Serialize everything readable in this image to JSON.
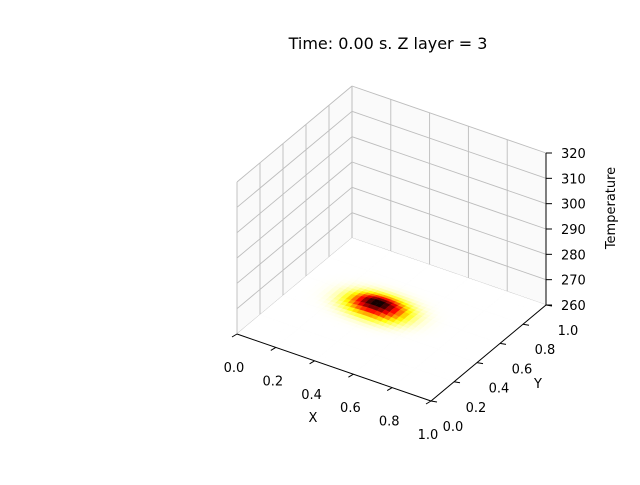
{
  "chart_data": {
    "type": "surface",
    "title": "Time: 0.00 s. Z layer = 3",
    "xlabel": "X",
    "ylabel": "Y",
    "zlabel": "Temperature",
    "xlim": [
      0.0,
      1.0
    ],
    "ylim": [
      0.0,
      1.0
    ],
    "zlim": [
      260,
      320
    ],
    "x_ticks": [
      "0.0",
      "0.2",
      "0.4",
      "0.6",
      "0.8",
      "1.0"
    ],
    "y_ticks": [
      "0.0",
      "0.2",
      "0.4",
      "0.6",
      "0.8",
      "1.0"
    ],
    "z_ticks": [
      "260",
      "270",
      "280",
      "290",
      "300",
      "310",
      "320"
    ],
    "grid": true,
    "colormap": "hot",
    "surface": {
      "baseline": 260,
      "peak_value": 262,
      "peak_x": 0.4,
      "peak_y": 0.55,
      "spread_x": 0.13,
      "spread_y": 0.09,
      "resolution": 40
    }
  }
}
